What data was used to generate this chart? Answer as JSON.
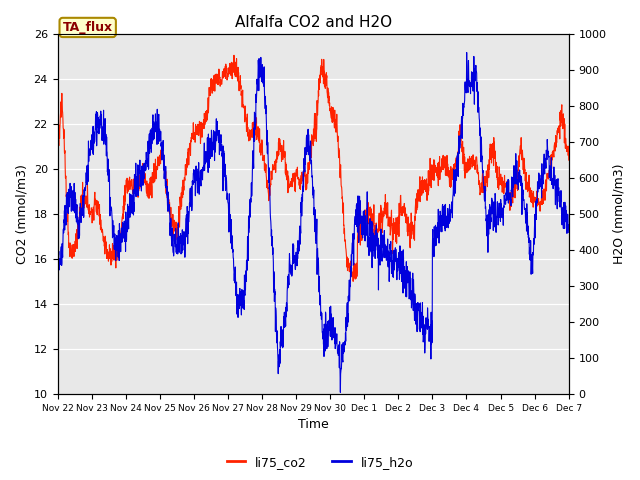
{
  "title": "Alfalfa CO2 and H2O",
  "xlabel": "Time",
  "ylabel_left": "CO2 (mmol/m3)",
  "ylabel_right": "H2O (mmol/m3)",
  "annotation": "TA_flux",
  "legend_labels": [
    "li75_co2",
    "li75_h2o"
  ],
  "co2_color": "#ff2200",
  "h2o_color": "#0000dd",
  "background_color": "#e8e8e8",
  "ylim_co2": [
    10,
    26
  ],
  "ylim_h2o": [
    0,
    1000
  ],
  "yticks_co2": [
    10,
    12,
    14,
    16,
    18,
    20,
    22,
    24,
    26
  ],
  "yticks_h2o": [
    0,
    100,
    200,
    300,
    400,
    500,
    600,
    700,
    800,
    900,
    1000
  ],
  "x_tick_labels": [
    "Nov 22",
    "Nov 23",
    "Nov 24",
    "Nov 25",
    "Nov 26",
    "Nov 27",
    "Nov 28",
    "Nov 29",
    "Nov 30",
    "Dec 1",
    "Dec 2",
    "Dec 3",
    "Dec 4",
    "Dec 5",
    "Dec 6",
    "Dec 7"
  ],
  "num_points": 2000,
  "figsize": [
    6.4,
    4.8
  ],
  "dpi": 100
}
